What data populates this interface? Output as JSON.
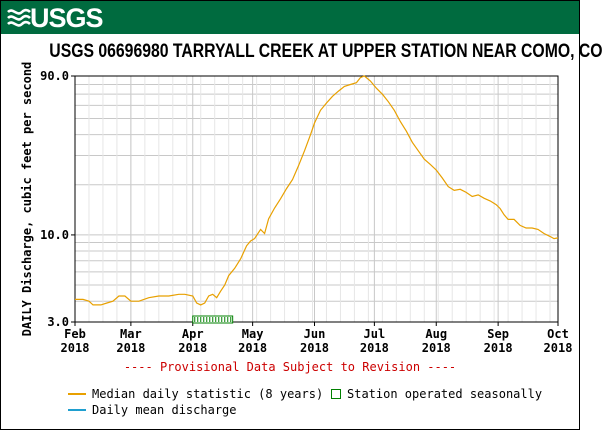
{
  "brand": {
    "name": "USGS",
    "color": "#006b3f"
  },
  "chart_data": {
    "type": "line",
    "title": "USGS 06696980 TARRYALL CREEK AT UPPER STATION NEAR COMO, CO",
    "ylabel": "DAILY Discharge, cubic feet per second",
    "yscale": "log",
    "ylim": [
      3.0,
      90.0
    ],
    "y_ticks": [
      "90.0",
      "10.0",
      "3.0"
    ],
    "x_ticks": [
      {
        "date": "2018-02-01",
        "line1": "Feb",
        "line2": "2018"
      },
      {
        "date": "2018-03-01",
        "line1": "Mar",
        "line2": "2018"
      },
      {
        "date": "2018-04-01",
        "line1": "Apr",
        "line2": "2018"
      },
      {
        "date": "2018-05-01",
        "line1": "May",
        "line2": "2018"
      },
      {
        "date": "2018-06-01",
        "line1": "Jun",
        "line2": "2018"
      },
      {
        "date": "2018-07-01",
        "line1": "Jul",
        "line2": "2018"
      },
      {
        "date": "2018-08-01",
        "line1": "Aug",
        "line2": "2018"
      },
      {
        "date": "2018-09-01",
        "line1": "Sep",
        "line2": "2018"
      },
      {
        "date": "2018-10-01",
        "line1": "Oct",
        "line2": "2018"
      }
    ],
    "xlim": [
      "2018-02-01",
      "2018-10-01"
    ],
    "grid": true,
    "series": [
      {
        "name": "Median daily statistic (8 years)",
        "color": "#e8a000",
        "points": [
          [
            "2018-02-01",
            4.1
          ],
          [
            "2018-02-05",
            4.1
          ],
          [
            "2018-02-08",
            4.0
          ],
          [
            "2018-02-10",
            3.8
          ],
          [
            "2018-02-14",
            3.8
          ],
          [
            "2018-02-17",
            3.9
          ],
          [
            "2018-02-20",
            4.0
          ],
          [
            "2018-02-23",
            4.3
          ],
          [
            "2018-02-26",
            4.3
          ],
          [
            "2018-03-01",
            4.0
          ],
          [
            "2018-03-05",
            4.0
          ],
          [
            "2018-03-10",
            4.2
          ],
          [
            "2018-03-15",
            4.3
          ],
          [
            "2018-03-20",
            4.3
          ],
          [
            "2018-03-25",
            4.4
          ],
          [
            "2018-03-28",
            4.4
          ],
          [
            "2018-04-01",
            4.3
          ],
          [
            "2018-04-03",
            3.9
          ],
          [
            "2018-04-05",
            3.8
          ],
          [
            "2018-04-07",
            3.9
          ],
          [
            "2018-04-09",
            4.3
          ],
          [
            "2018-04-11",
            4.4
          ],
          [
            "2018-04-13",
            4.2
          ],
          [
            "2018-04-15",
            4.6
          ],
          [
            "2018-04-17",
            5.0
          ],
          [
            "2018-04-19",
            5.7
          ],
          [
            "2018-04-22",
            6.3
          ],
          [
            "2018-04-25",
            7.2
          ],
          [
            "2018-04-28",
            8.6
          ],
          [
            "2018-04-30",
            9.2
          ],
          [
            "2018-05-02",
            9.5
          ],
          [
            "2018-05-05",
            10.8
          ],
          [
            "2018-05-07",
            10.2
          ],
          [
            "2018-05-09",
            12.5
          ],
          [
            "2018-05-12",
            14.5
          ],
          [
            "2018-05-15",
            16.5
          ],
          [
            "2018-05-18",
            19.0
          ],
          [
            "2018-05-21",
            21.5
          ],
          [
            "2018-05-24",
            26.0
          ],
          [
            "2018-05-27",
            32.0
          ],
          [
            "2018-05-30",
            40.0
          ],
          [
            "2018-06-01",
            47.0
          ],
          [
            "2018-06-04",
            56.0
          ],
          [
            "2018-06-07",
            62.0
          ],
          [
            "2018-06-10",
            68.0
          ],
          [
            "2018-06-13",
            73.0
          ],
          [
            "2018-06-16",
            78.0
          ],
          [
            "2018-06-19",
            80.0
          ],
          [
            "2018-06-22",
            82.0
          ],
          [
            "2018-06-24",
            88.0
          ],
          [
            "2018-06-26",
            90.0
          ],
          [
            "2018-06-29",
            84.0
          ],
          [
            "2018-07-02",
            76.0
          ],
          [
            "2018-07-05",
            70.0
          ],
          [
            "2018-07-08",
            63.0
          ],
          [
            "2018-07-11",
            56.0
          ],
          [
            "2018-07-14",
            48.0
          ],
          [
            "2018-07-17",
            42.0
          ],
          [
            "2018-07-20",
            36.0
          ],
          [
            "2018-07-23",
            32.0
          ],
          [
            "2018-07-26",
            28.5
          ],
          [
            "2018-07-29",
            26.5
          ],
          [
            "2018-08-01",
            24.5
          ],
          [
            "2018-08-04",
            22.0
          ],
          [
            "2018-08-07",
            19.5
          ],
          [
            "2018-08-10",
            18.5
          ],
          [
            "2018-08-13",
            18.8
          ],
          [
            "2018-08-16",
            18.0
          ],
          [
            "2018-08-19",
            17.0
          ],
          [
            "2018-08-22",
            17.4
          ],
          [
            "2018-08-25",
            16.6
          ],
          [
            "2018-08-28",
            16.0
          ],
          [
            "2018-08-31",
            15.2
          ],
          [
            "2018-09-02",
            14.4
          ],
          [
            "2018-09-04",
            13.2
          ],
          [
            "2018-09-06",
            12.4
          ],
          [
            "2018-09-09",
            12.4
          ],
          [
            "2018-09-12",
            11.4
          ],
          [
            "2018-09-15",
            11.0
          ],
          [
            "2018-09-18",
            11.0
          ],
          [
            "2018-09-21",
            10.8
          ],
          [
            "2018-09-24",
            10.2
          ],
          [
            "2018-09-27",
            9.8
          ],
          [
            "2018-09-29",
            9.5
          ],
          [
            "2018-10-01",
            9.6
          ]
        ]
      },
      {
        "name": "Daily mean discharge",
        "color": "#1f9fcf",
        "points": []
      }
    ],
    "seasonal_station": {
      "label": "Station operated seasonally",
      "color": "#008000",
      "start": "2018-04-01",
      "end": "2018-04-21"
    },
    "annotation": "---- Provisional Data Subject to Revision ----",
    "annotation_color": "#cc0000",
    "legend": [
      {
        "label": "Median daily statistic (8 years)",
        "color": "#e8a000",
        "kind": "line"
      },
      {
        "label": "Station operated seasonally",
        "color": "#008000",
        "kind": "box"
      },
      {
        "label": "Daily mean discharge",
        "color": "#1f9fcf",
        "kind": "line"
      }
    ]
  }
}
